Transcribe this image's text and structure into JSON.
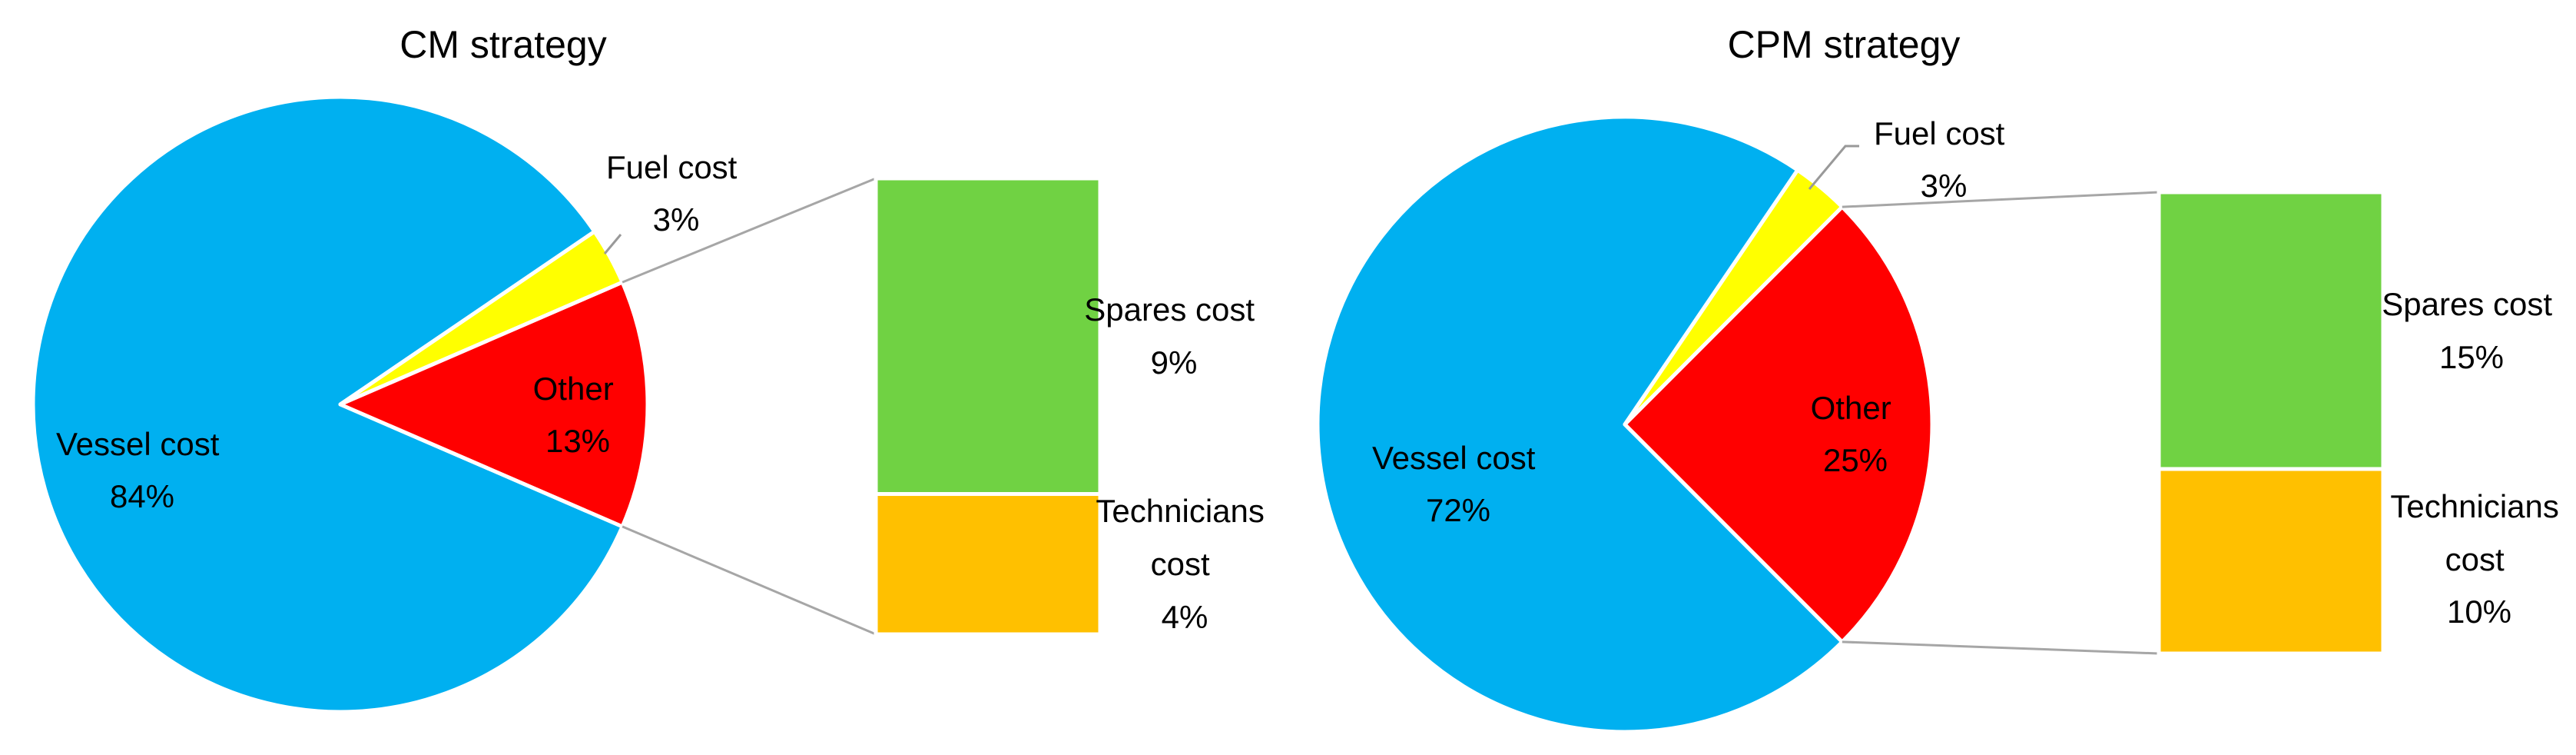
{
  "chart_data": [
    {
      "type": "pie",
      "title": "CM strategy",
      "slices": [
        {
          "label": "Vessel cost",
          "value_label": "84%",
          "value": 84,
          "color": "#00B0F0"
        },
        {
          "label": "Fuel cost",
          "value_label": "3%",
          "value": 3,
          "color": "#FFFF00"
        },
        {
          "label": "Other",
          "value_label": "13%",
          "value": 13,
          "color": "#FF0000"
        }
      ],
      "breakdown_of": "Other",
      "breakdown": [
        {
          "label_lines": [
            "Spares cost"
          ],
          "value_label": "9%",
          "value": 9,
          "color": "#70D243"
        },
        {
          "label_lines": [
            "Technicians",
            "cost"
          ],
          "value_label": "4%",
          "value": 4,
          "color": "#FFC000"
        }
      ]
    },
    {
      "type": "pie",
      "title": "CPM strategy",
      "slices": [
        {
          "label": "Vessel cost",
          "value_label": "72%",
          "value": 72,
          "color": "#00B0F0"
        },
        {
          "label": "Fuel cost",
          "value_label": "3%",
          "value": 3,
          "color": "#FFFF00"
        },
        {
          "label": "Other",
          "value_label": "25%",
          "value": 25,
          "color": "#FF0000"
        }
      ],
      "breakdown_of": "Other",
      "breakdown": [
        {
          "label_lines": [
            "Spares cost"
          ],
          "value_label": "15%",
          "value": 15,
          "color": "#70D243"
        },
        {
          "label_lines": [
            "Technicians",
            "cost"
          ],
          "value_label": "10%",
          "value": 10,
          "color": "#FFC000"
        }
      ]
    }
  ]
}
